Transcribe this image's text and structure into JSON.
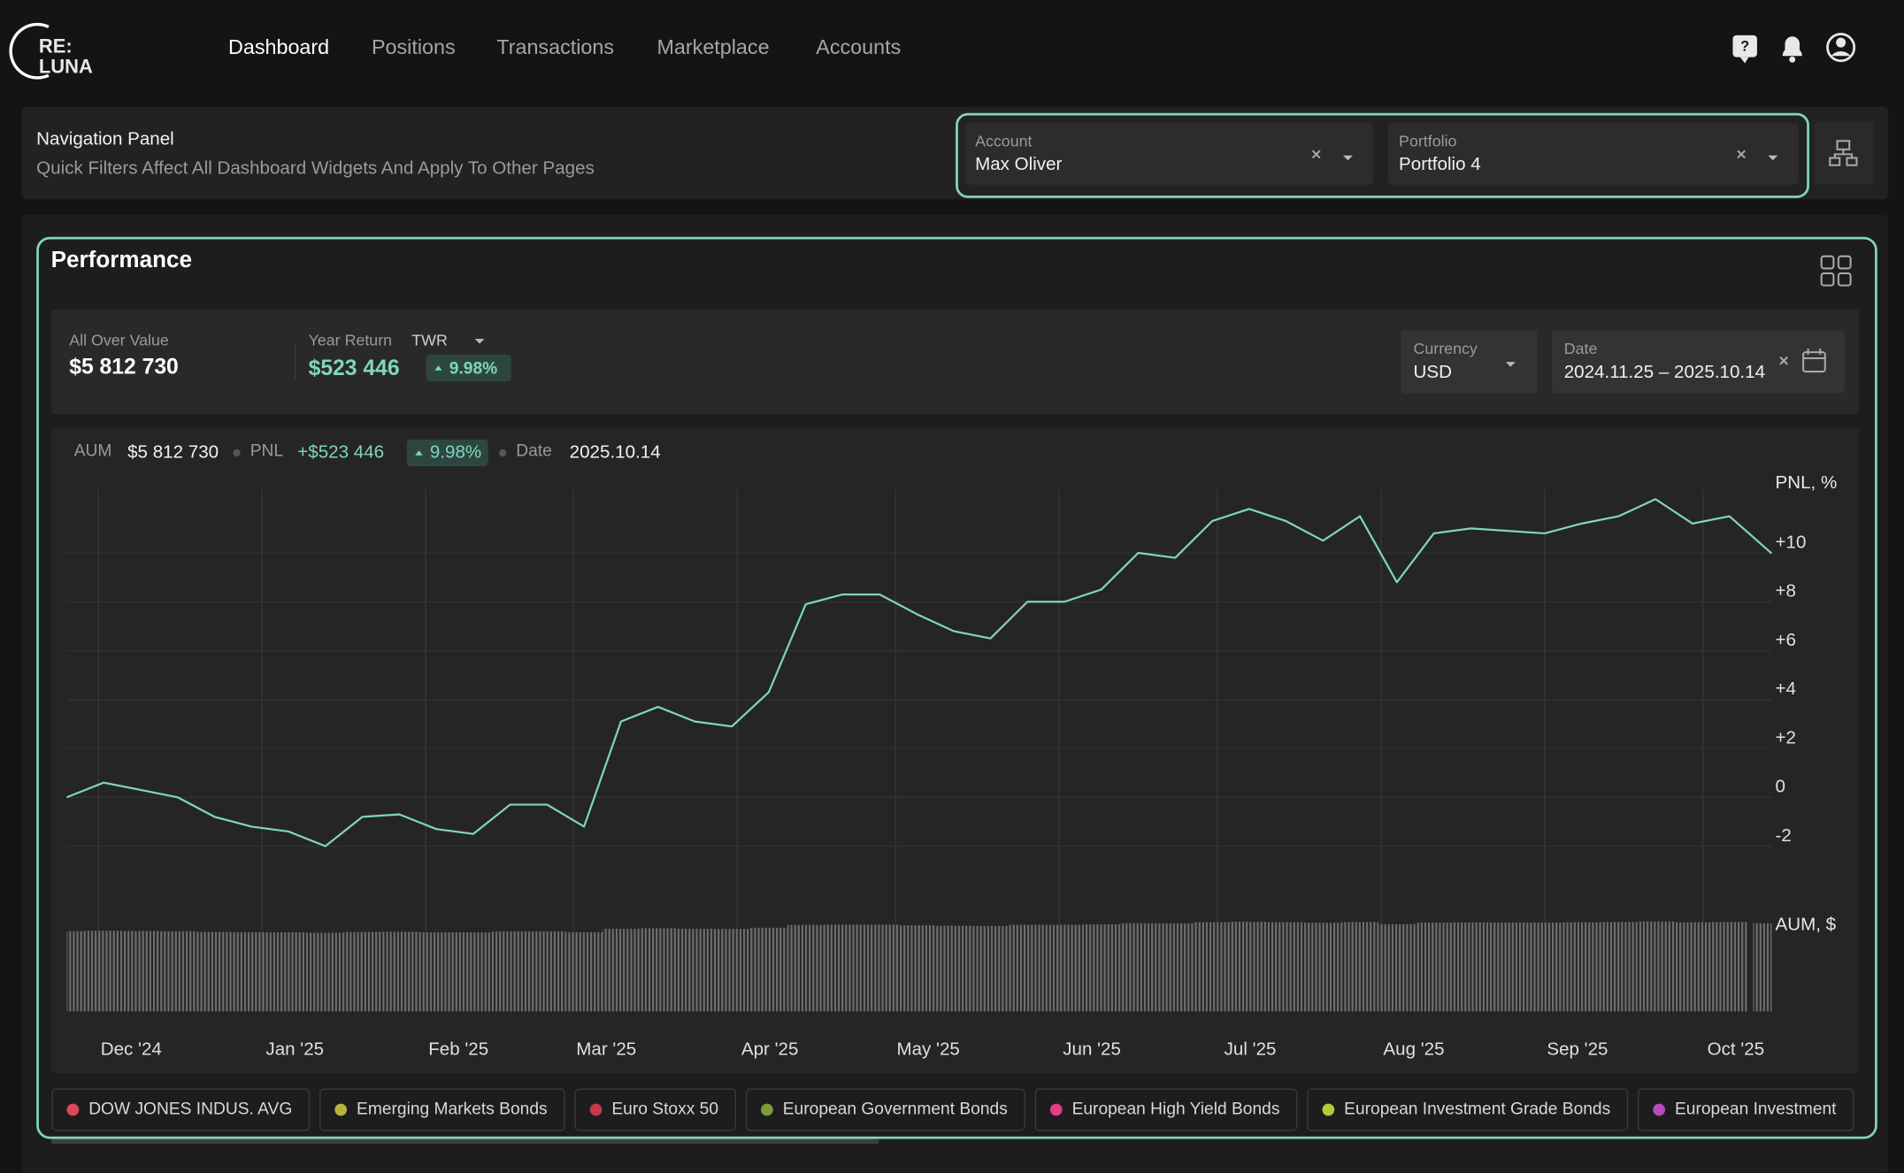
{
  "header": {
    "logo": [
      "RE:",
      "LUNA"
    ],
    "nav": [
      "Dashboard",
      "Positions",
      "Transactions",
      "Marketplace",
      "Accounts"
    ]
  },
  "navigation_panel": {
    "title": "Navigation Panel",
    "subtitle": "Quick Filters Affect All Dashboard Widgets And Apply To Other Pages",
    "filters": [
      {
        "label": "Account",
        "value": "Max Oliver"
      },
      {
        "label": "Portfolio",
        "value": "Portfolio 4"
      }
    ]
  },
  "performance": {
    "title": "Performance",
    "summary": {
      "all_over_value_label": "All Over Value",
      "all_over_value": "$5 812 730",
      "year_return_label": "Year Return",
      "method": "TWR",
      "year_return": "$523 446",
      "year_return_pct": "9.98%"
    },
    "currency": {
      "label": "Currency",
      "value": "USD"
    },
    "date": {
      "label": "Date",
      "value": "2024.11.25 – 2025.10.14"
    }
  },
  "chart_data": {
    "type": "line",
    "header": {
      "aum_label": "AUM",
      "aum": "$5 812 730",
      "pnl_label": "PNL",
      "pnl": "+$523 446",
      "pnl_pct": "9.98%",
      "date_label": "Date",
      "date": "2025.10.14"
    },
    "y_label": "PNL, %",
    "y2_label": "AUM, $",
    "x": [
      "2024-11-25",
      "2024-12-02",
      "2024-12-09",
      "2024-12-16",
      "2024-12-23",
      "2024-12-30",
      "2025-01-06",
      "2025-01-13",
      "2025-01-20",
      "2025-01-27",
      "2025-02-03",
      "2025-02-10",
      "2025-02-17",
      "2025-02-24",
      "2025-03-03",
      "2025-03-10",
      "2025-03-17",
      "2025-03-24",
      "2025-03-31",
      "2025-04-07",
      "2025-04-14",
      "2025-04-21",
      "2025-04-28",
      "2025-05-05",
      "2025-05-12",
      "2025-05-19",
      "2025-05-26",
      "2025-06-02",
      "2025-06-09",
      "2025-06-16",
      "2025-06-23",
      "2025-06-30",
      "2025-07-07",
      "2025-07-14",
      "2025-07-21",
      "2025-07-28",
      "2025-08-04",
      "2025-08-11",
      "2025-08-18",
      "2025-08-25",
      "2025-09-01",
      "2025-09-08",
      "2025-09-15",
      "2025-09-22",
      "2025-09-29",
      "2025-10-06",
      "2025-10-14"
    ],
    "xlim": [
      "2024-11-25",
      "2025-10-14"
    ],
    "xticks": [
      {
        "value": "2024-12-01",
        "label": "Dec '24"
      },
      {
        "value": "2025-01-01",
        "label": "Jan '25"
      },
      {
        "value": "2025-02-01",
        "label": "Feb '25"
      },
      {
        "value": "2025-03-01",
        "label": "Mar '25"
      },
      {
        "value": "2025-04-01",
        "label": "Apr '25"
      },
      {
        "value": "2025-05-01",
        "label": "May '25"
      },
      {
        "value": "2025-06-01",
        "label": "Jun '25"
      },
      {
        "value": "2025-07-01",
        "label": "Jul '25"
      },
      {
        "value": "2025-08-01",
        "label": "Aug '25"
      },
      {
        "value": "2025-09-01",
        "label": "Sep '25"
      },
      {
        "value": "2025-10-01",
        "label": "Oct '25"
      }
    ],
    "ylim": [
      -3,
      12.5
    ],
    "yticks": [
      {
        "value": 10,
        "label": "+10"
      },
      {
        "value": 8,
        "label": "+8"
      },
      {
        "value": 6,
        "label": "+6"
      },
      {
        "value": 4,
        "label": "+4"
      },
      {
        "value": 2,
        "label": "+2"
      },
      0,
      -2
    ],
    "y2lim": [
      0,
      6000000
    ],
    "grid": true,
    "series": [
      {
        "color": "#7fd6be",
        "values": [
          0.0,
          0.6,
          0.3,
          0.0,
          -0.8,
          -1.2,
          -1.4,
          -2.0,
          -0.8,
          -0.7,
          -1.3,
          -1.5,
          -0.3,
          -0.3,
          -1.2,
          3.1,
          3.7,
          3.1,
          2.9,
          4.3,
          7.9,
          8.3,
          8.3,
          7.5,
          6.8,
          6.5,
          8.0,
          8.0,
          8.5,
          10.0,
          9.8,
          11.3,
          11.8,
          11.3,
          10.5,
          11.5,
          8.8,
          10.8,
          11.0,
          10.9,
          10.8,
          11.2,
          11.5,
          12.2,
          11.2,
          11.5,
          9.98
        ]
      },
      {
        "type": "bar",
        "axis": "y2",
        "color": "#6e6e6e",
        "values": [
          5285000,
          5317000,
          5301000,
          5285000,
          5243000,
          5222000,
          5211000,
          5179000,
          5243000,
          5248000,
          5216000,
          5206000,
          5269000,
          5269000,
          5222000,
          5449000,
          5481000,
          5449000,
          5438000,
          5512000,
          5703000,
          5724000,
          5724000,
          5681000,
          5644000,
          5629000,
          5708000,
          5708000,
          5734000,
          5814000,
          5803000,
          5882000,
          5909000,
          5882000,
          5840000,
          5893000,
          5750000,
          5856000,
          5866000,
          5861000,
          5856000,
          5877000,
          5893000,
          5930000,
          5877000,
          5893000,
          5812730
        ]
      }
    ]
  },
  "legend_chips": [
    {
      "name": "DOW JONES INDUS. AVG",
      "color": "#e0455a"
    },
    {
      "name": "Emerging Markets Bonds",
      "color": "#b7b33a"
    },
    {
      "name": "Euro Stoxx 50",
      "color": "#c8374a"
    },
    {
      "name": "European Government Bonds",
      "color": "#7f9a3a"
    },
    {
      "name": "European High Yield Bonds",
      "color": "#e23d86"
    },
    {
      "name": "European Investment Grade Bonds",
      "color": "#b9c93e"
    },
    {
      "name": "European Investment",
      "color": "#b44cc0"
    }
  ]
}
